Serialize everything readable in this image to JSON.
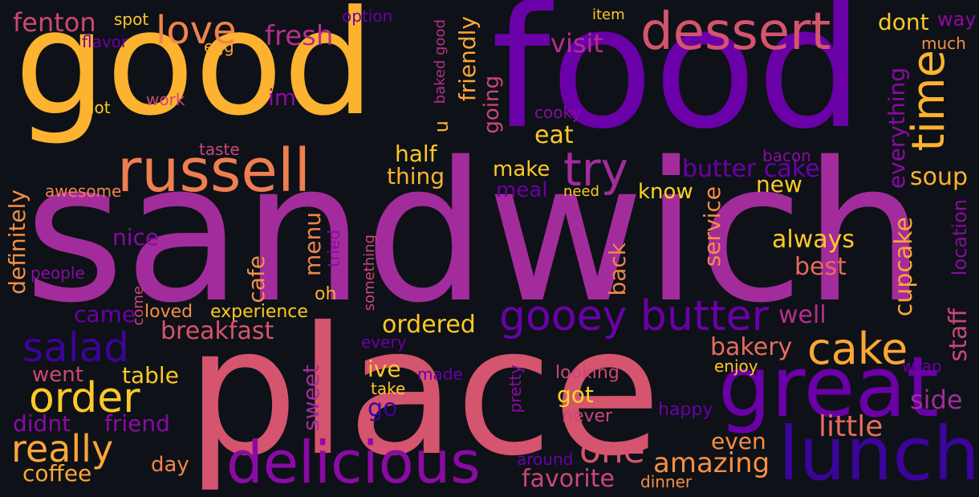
{
  "words": [
    {
      "text": "sandwich",
      "color": "#a32c9c",
      "orientation": "horizontal"
    },
    {
      "text": "food",
      "color": "#6a00a8",
      "orientation": "horizontal"
    },
    {
      "text": "good",
      "color": "#fdb32f",
      "orientation": "horizontal"
    },
    {
      "text": "place",
      "color": "#d5546e",
      "orientation": "horizontal"
    },
    {
      "text": "great",
      "color": "#6a00a8",
      "orientation": "horizontal"
    },
    {
      "text": "delicious",
      "color": "#8b0aa5",
      "orientation": "horizontal"
    },
    {
      "text": "lunch",
      "color": "#3b049a",
      "orientation": "horizontal"
    },
    {
      "text": "russell",
      "color": "#ef7e50",
      "orientation": "horizontal"
    },
    {
      "text": "dessert",
      "color": "#d5546e",
      "orientation": "horizontal"
    },
    {
      "text": "time",
      "color": "#fdb32f",
      "orientation": "vertical"
    },
    {
      "text": "try",
      "color": "#a32c9c",
      "orientation": "horizontal"
    },
    {
      "text": "gooey butter",
      "color": "#6a00a8",
      "orientation": "horizontal"
    },
    {
      "text": "cake",
      "color": "#fca636",
      "orientation": "horizontal"
    },
    {
      "text": "salad",
      "color": "#3b049a",
      "orientation": "horizontal"
    },
    {
      "text": "order",
      "color": "#fdc926",
      "orientation": "horizontal"
    },
    {
      "text": "really",
      "color": "#fca636",
      "orientation": "horizontal"
    },
    {
      "text": "love",
      "color": "#f1844b",
      "orientation": "horizontal"
    },
    {
      "text": "butter cake",
      "color": "#6a00a8",
      "orientation": "horizontal"
    },
    {
      "text": "one",
      "color": "#d5546e",
      "orientation": "horizontal"
    },
    {
      "text": "little",
      "color": "#e66c5c",
      "orientation": "horizontal"
    },
    {
      "text": "fresh",
      "color": "#b52f8c",
      "orientation": "horizontal"
    },
    {
      "text": "fenton",
      "color": "#cc4778",
      "orientation": "horizontal"
    },
    {
      "text": "amazing",
      "color": "#f68f44",
      "orientation": "horizontal"
    },
    {
      "text": "favorite",
      "color": "#cc4778",
      "orientation": "horizontal"
    },
    {
      "text": "breakfast",
      "color": "#d5546e",
      "orientation": "horizontal"
    },
    {
      "text": "ordered",
      "color": "#fdc926",
      "orientation": "horizontal"
    },
    {
      "text": "friendly",
      "color": "#fca636",
      "orientation": "vertical"
    },
    {
      "text": "visit",
      "color": "#b52f8c",
      "orientation": "horizontal"
    },
    {
      "text": "dont",
      "color": "#fdc926",
      "orientation": "horizontal"
    },
    {
      "text": "everything",
      "color": "#8b0aa5",
      "orientation": "vertical"
    },
    {
      "text": "location",
      "color": "#8b0aa5",
      "orientation": "vertical"
    },
    {
      "text": "staff",
      "color": "#cc4778",
      "orientation": "vertical"
    },
    {
      "text": "cupcake",
      "color": "#fca636",
      "orientation": "vertical"
    },
    {
      "text": "soup",
      "color": "#fdb32f",
      "orientation": "horizontal"
    },
    {
      "text": "side",
      "color": "#a32c9c",
      "orientation": "horizontal"
    },
    {
      "text": "always",
      "color": "#fdc926",
      "orientation": "horizontal"
    },
    {
      "text": "best",
      "color": "#e66c5c",
      "orientation": "horizontal"
    },
    {
      "text": "well",
      "color": "#b52f8c",
      "orientation": "horizontal"
    },
    {
      "text": "bakery",
      "color": "#e66c5c",
      "orientation": "horizontal"
    },
    {
      "text": "even",
      "color": "#f68f44",
      "orientation": "horizontal"
    },
    {
      "text": "service",
      "color": "#f68f44",
      "orientation": "vertical"
    },
    {
      "text": "back",
      "color": "#f1844b",
      "orientation": "vertical"
    },
    {
      "text": "know",
      "color": "#fbd524",
      "orientation": "horizontal"
    },
    {
      "text": "new",
      "color": "#fdc926",
      "orientation": "horizontal"
    },
    {
      "text": "make",
      "color": "#fdc926",
      "orientation": "horizontal"
    },
    {
      "text": "meal",
      "color": "#6a00a8",
      "orientation": "horizontal"
    },
    {
      "text": "need",
      "color": "#fdc926",
      "orientation": "horizontal"
    },
    {
      "text": "eat",
      "color": "#fdc926",
      "orientation": "horizontal"
    },
    {
      "text": "going",
      "color": "#cc4778",
      "orientation": "vertical"
    },
    {
      "text": "half",
      "color": "#fdc926",
      "orientation": "horizontal"
    },
    {
      "text": "thing",
      "color": "#fdb32f",
      "orientation": "horizontal"
    },
    {
      "text": "u",
      "color": "#fdb32f",
      "orientation": "vertical"
    },
    {
      "text": "im",
      "color": "#8b0aa5",
      "orientation": "horizontal"
    },
    {
      "text": "baked good",
      "color": "#b52f8c",
      "orientation": "vertical"
    },
    {
      "text": "cooky",
      "color": "#8b0aa5",
      "orientation": "horizontal"
    },
    {
      "text": "item",
      "color": "#fdc926",
      "orientation": "horizontal"
    },
    {
      "text": "way",
      "color": "#8b0aa5",
      "orientation": "horizontal"
    },
    {
      "text": "much",
      "color": "#f68f44",
      "orientation": "horizontal"
    },
    {
      "text": "bacon",
      "color": "#8b0aa5",
      "orientation": "horizontal"
    },
    {
      "text": "option",
      "color": "#6a00a8",
      "orientation": "horizontal"
    },
    {
      "text": "spot",
      "color": "#fdc926",
      "orientation": "horizontal"
    },
    {
      "text": "egg",
      "color": "#fca636",
      "orientation": "horizontal"
    },
    {
      "text": "flavor",
      "color": "#6a00a8",
      "orientation": "horizontal"
    },
    {
      "text": "work",
      "color": "#cc4778",
      "orientation": "horizontal"
    },
    {
      "text": "lot",
      "color": "#fdc926",
      "orientation": "horizontal"
    },
    {
      "text": "taste",
      "color": "#cc4778",
      "orientation": "horizontal"
    },
    {
      "text": "awesome",
      "color": "#f1844b",
      "orientation": "horizontal"
    },
    {
      "text": "definitely",
      "color": "#f68f44",
      "orientation": "vertical"
    },
    {
      "text": "nice",
      "color": "#8b0aa5",
      "orientation": "horizontal"
    },
    {
      "text": "people",
      "color": "#8b0aa5",
      "orientation": "horizontal"
    },
    {
      "text": "cafe",
      "color": "#f68f44",
      "orientation": "vertical"
    },
    {
      "text": "menu",
      "color": "#f1844b",
      "orientation": "vertical"
    },
    {
      "text": "tried",
      "color": "#8b0aa5",
      "orientation": "vertical"
    },
    {
      "text": "something",
      "color": "#cc4778",
      "orientation": "vertical"
    },
    {
      "text": "came",
      "color": "#6a00a8",
      "orientation": "horizontal"
    },
    {
      "text": "come",
      "color": "#cc4778",
      "orientation": "vertical"
    },
    {
      "text": "loved",
      "color": "#f68f44",
      "orientation": "horizontal"
    },
    {
      "text": "experience",
      "color": "#fdc926",
      "orientation": "horizontal"
    },
    {
      "text": "oh",
      "color": "#fdb32f",
      "orientation": "horizontal"
    },
    {
      "text": "every",
      "color": "#6a00a8",
      "orientation": "horizontal"
    },
    {
      "text": "ive",
      "color": "#fdc926",
      "orientation": "horizontal"
    },
    {
      "text": "went",
      "color": "#cc4778",
      "orientation": "horizontal"
    },
    {
      "text": "table",
      "color": "#fdc926",
      "orientation": "horizontal"
    },
    {
      "text": "didnt",
      "color": "#8b0aa5",
      "orientation": "horizontal"
    },
    {
      "text": "friend",
      "color": "#8b0aa5",
      "orientation": "horizontal"
    },
    {
      "text": "sweet",
      "color": "#a32c9c",
      "orientation": "vertical"
    },
    {
      "text": "go",
      "color": "#3b049a",
      "orientation": "horizontal"
    },
    {
      "text": "made",
      "color": "#6a00a8",
      "orientation": "horizontal"
    },
    {
      "text": "take",
      "color": "#fdc926",
      "orientation": "horizontal"
    },
    {
      "text": "pretty",
      "color": "#8b0aa5",
      "orientation": "vertical"
    },
    {
      "text": "got",
      "color": "#fbd524",
      "orientation": "horizontal"
    },
    {
      "text": "looking",
      "color": "#cc4778",
      "orientation": "horizontal"
    },
    {
      "text": "never",
      "color": "#cc4778",
      "orientation": "horizontal"
    },
    {
      "text": "enjoy",
      "color": "#fdc926",
      "orientation": "horizontal"
    },
    {
      "text": "happy",
      "color": "#6a00a8",
      "orientation": "horizontal"
    },
    {
      "text": "wrap",
      "color": "#6a00a8",
      "orientation": "horizontal"
    },
    {
      "text": "day",
      "color": "#f1844b",
      "orientation": "horizontal"
    },
    {
      "text": "coffee",
      "color": "#fca636",
      "orientation": "horizontal"
    },
    {
      "text": "around",
      "color": "#6a00a8",
      "orientation": "horizontal"
    },
    {
      "text": "dinner",
      "color": "#f68f44",
      "orientation": "horizontal"
    }
  ]
}
